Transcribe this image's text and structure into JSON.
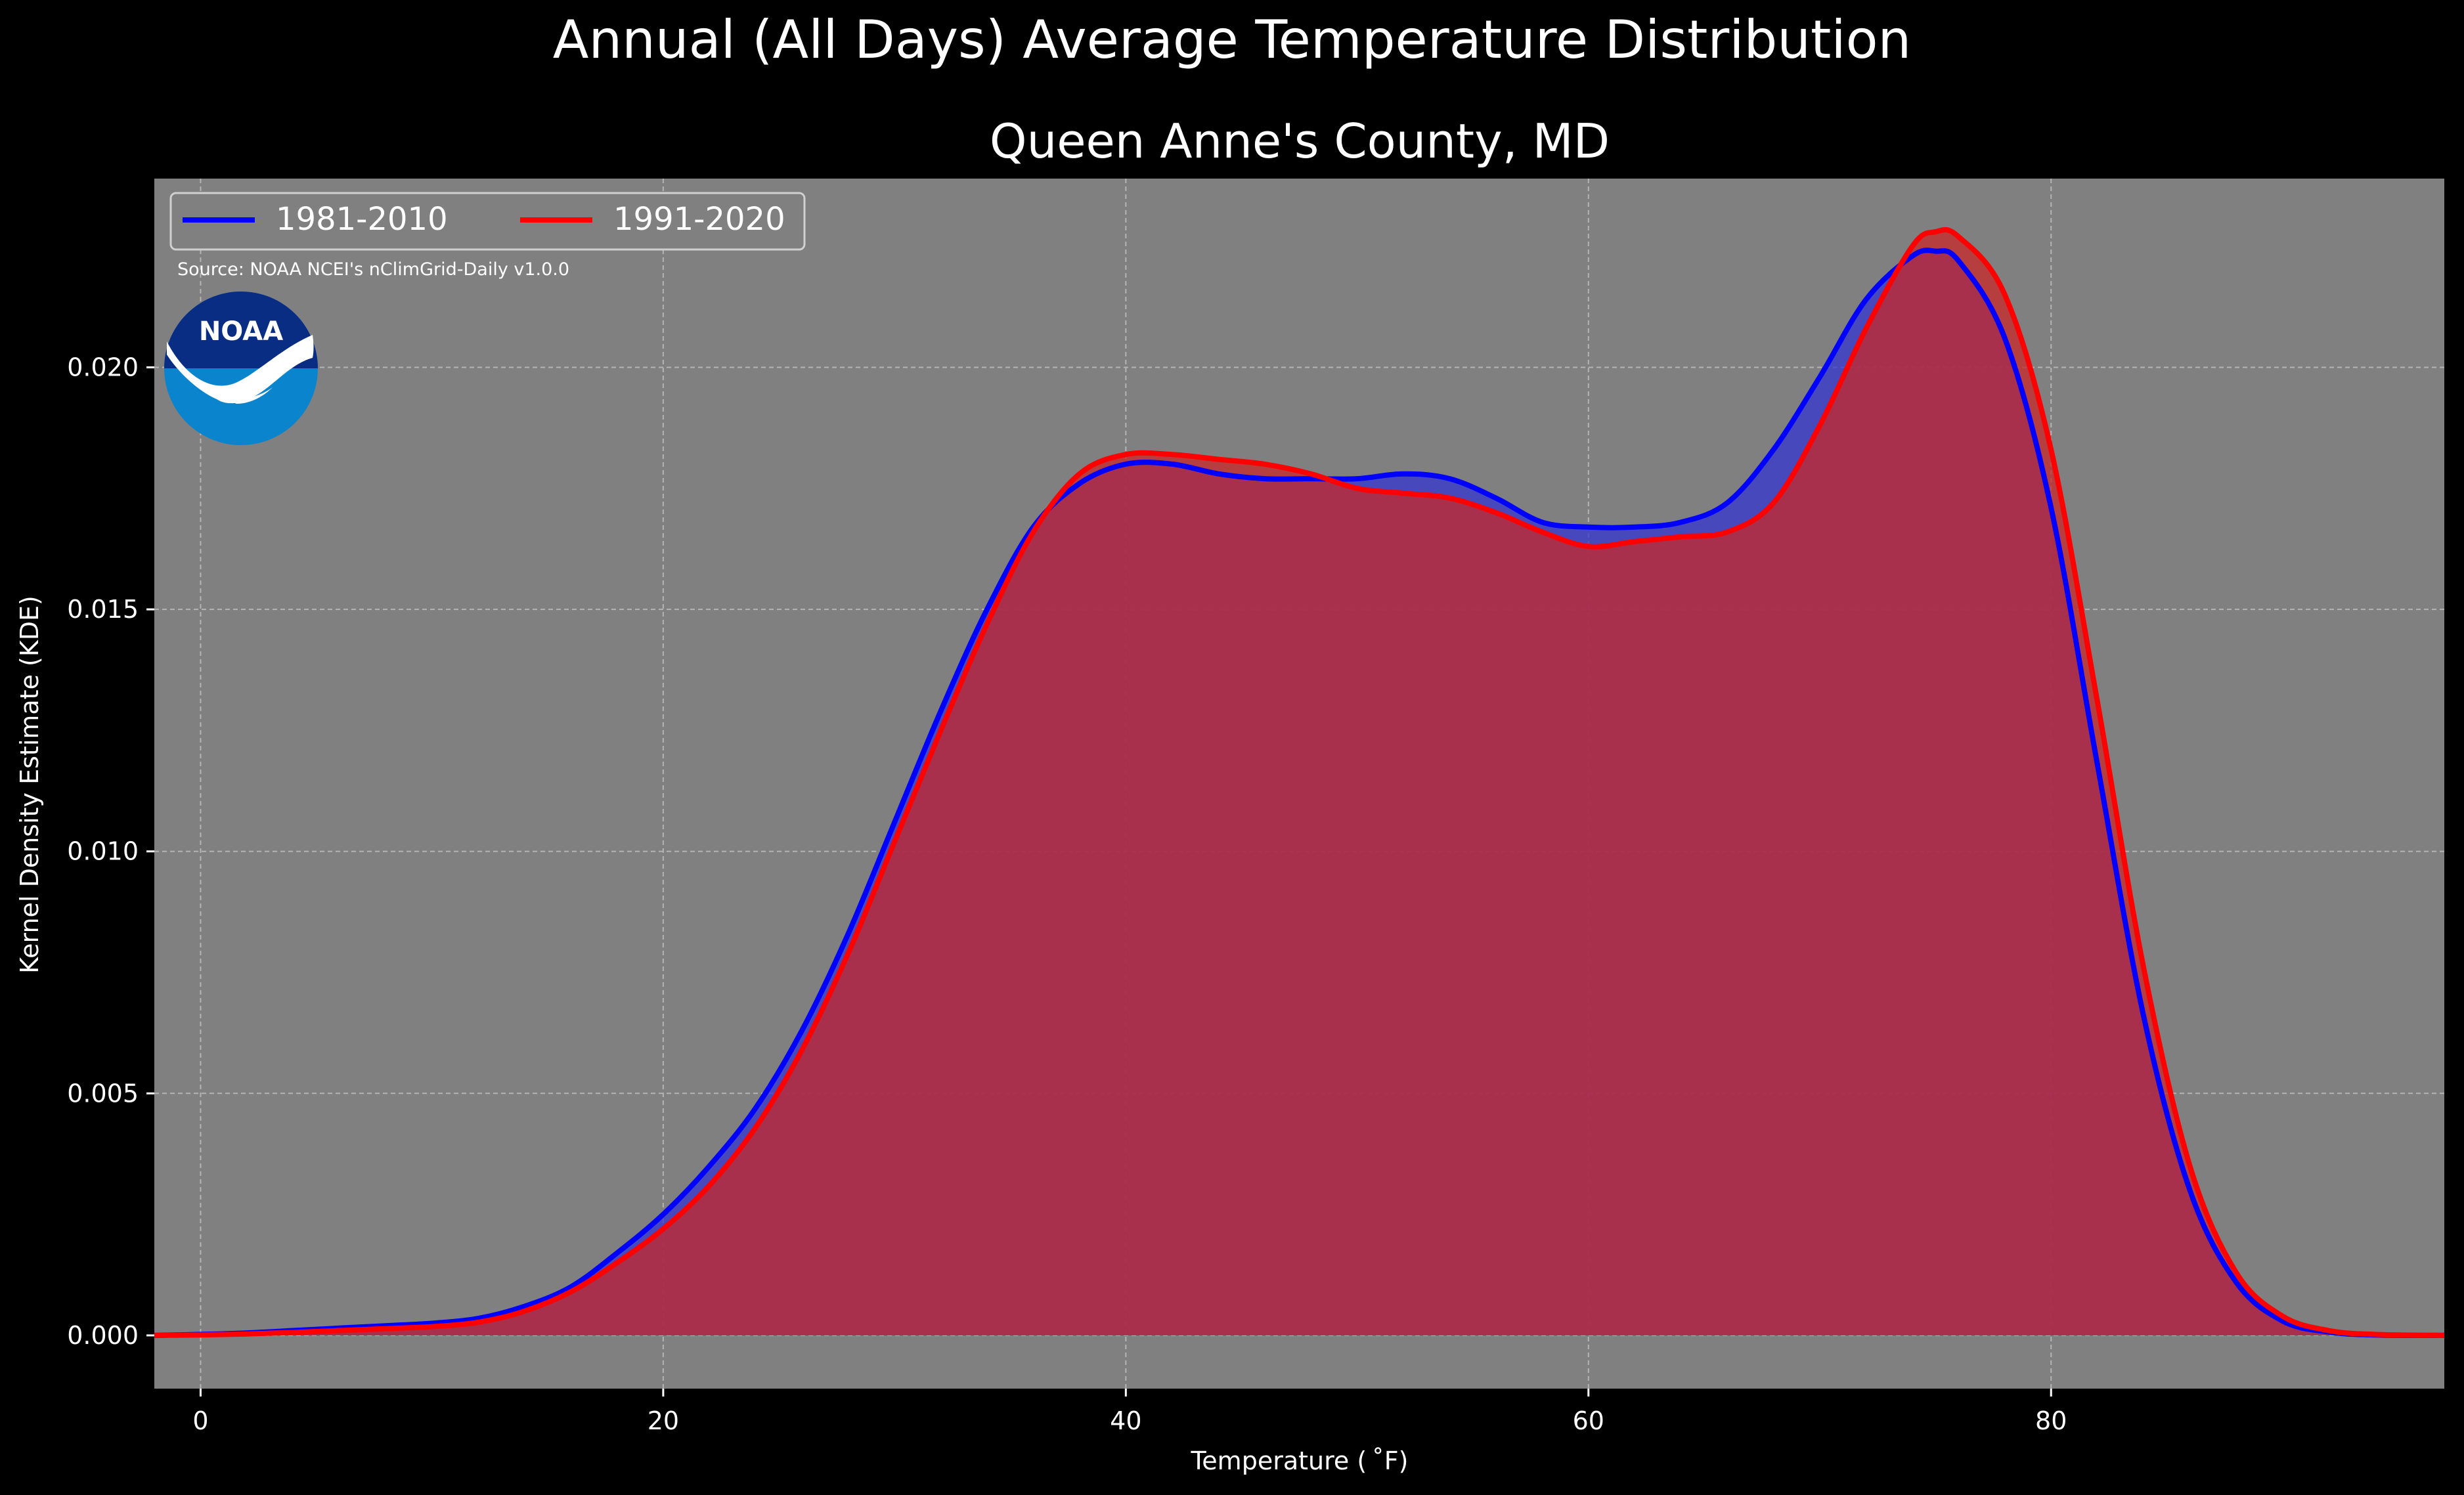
{
  "chart_data": {
    "type": "area",
    "title": "Annual (All Days) Average Temperature Distribution",
    "subtitle": "Queen Anne's County, MD",
    "xlabel": "Temperature ( ˚F)",
    "ylabel": "Kernel Density Estimate (KDE)",
    "xlim": [
      -2,
      97
    ],
    "ylim": [
      -0.0011,
      0.0239
    ],
    "x_ticks": [
      0,
      20,
      40,
      60,
      80
    ],
    "x_tick_labels": [
      "0",
      "20",
      "40",
      "60",
      "80"
    ],
    "y_ticks": [
      0.0,
      0.005,
      0.01,
      0.015,
      0.02
    ],
    "y_tick_labels": [
      "0.000",
      "0.005",
      "0.010",
      "0.015",
      "0.020"
    ],
    "grid": true,
    "legend_position": "top-left",
    "source_note": "Source: NOAA NCEI's nClimGrid-Daily v1.0.0",
    "logo_text": "NOAA",
    "background_color": "#808080",
    "series": [
      {
        "name": "1981-2010",
        "color": "#0000ff",
        "fill": "#3535d2",
        "x": [
          -2,
          0,
          2,
          4,
          6,
          8,
          10,
          12,
          14,
          16,
          18,
          20,
          22,
          24,
          26,
          28,
          30,
          32,
          34,
          36,
          38,
          40,
          42,
          44,
          46,
          48,
          50,
          52,
          54,
          56,
          58,
          60,
          62,
          64,
          66,
          68,
          70,
          72,
          74,
          75,
          76,
          78,
          80,
          82,
          84,
          86,
          88,
          90,
          92,
          94,
          97
        ],
        "y": [
          0.0,
          2e-05,
          5e-05,
          0.0001,
          0.00015,
          0.0002,
          0.00025,
          0.00035,
          0.0006,
          0.001,
          0.0017,
          0.0025,
          0.0035,
          0.0047,
          0.0063,
          0.0083,
          0.0106,
          0.0129,
          0.015,
          0.0167,
          0.0176,
          0.018,
          0.018,
          0.0178,
          0.0177,
          0.0177,
          0.0177,
          0.0178,
          0.0177,
          0.0173,
          0.0168,
          0.0167,
          0.0167,
          0.0168,
          0.0172,
          0.0183,
          0.0198,
          0.0214,
          0.0223,
          0.0224,
          0.0222,
          0.0206,
          0.0171,
          0.0118,
          0.0066,
          0.003,
          0.0011,
          0.0003,
          7e-05,
          1e-05,
          0.0
        ]
      },
      {
        "name": "1991-2020",
        "color": "#ff0000",
        "fill": "#c82828",
        "x": [
          -2,
          0,
          2,
          4,
          6,
          8,
          10,
          12,
          14,
          16,
          18,
          20,
          22,
          24,
          26,
          28,
          30,
          32,
          34,
          36,
          38,
          40,
          42,
          44,
          46,
          48,
          50,
          52,
          54,
          56,
          58,
          60,
          62,
          64,
          66,
          68,
          70,
          72,
          74,
          75,
          76,
          78,
          80,
          82,
          84,
          86,
          88,
          90,
          92,
          94,
          97
        ],
        "y": [
          0.0,
          1e-05,
          3e-05,
          6e-05,
          0.0001,
          0.00014,
          0.00018,
          0.00027,
          0.0005,
          0.0009,
          0.0015,
          0.0022,
          0.0031,
          0.0043,
          0.0059,
          0.0079,
          0.0102,
          0.0125,
          0.0147,
          0.0166,
          0.0178,
          0.0182,
          0.0182,
          0.0181,
          0.018,
          0.0178,
          0.0175,
          0.0174,
          0.0173,
          0.017,
          0.0166,
          0.0163,
          0.0164,
          0.0165,
          0.0166,
          0.0172,
          0.0188,
          0.0208,
          0.0225,
          0.0228,
          0.0227,
          0.0215,
          0.0183,
          0.0131,
          0.0076,
          0.0035,
          0.0013,
          0.0004,
          0.0001,
          2e-05,
          0.0
        ]
      }
    ]
  }
}
